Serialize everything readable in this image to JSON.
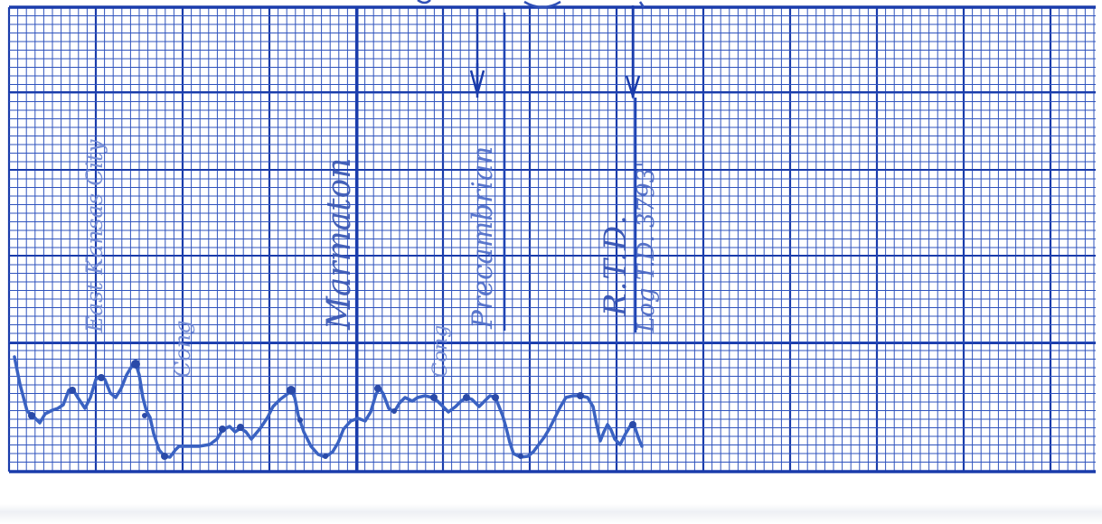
{
  "annotations": {
    "east_kansas_city": "East Kansas City",
    "conglomerate_1": "Cong",
    "marmaton": "Marmaton",
    "conglomerate_2": "Cong",
    "precambrian": "Precambrian",
    "rtd": "R.T.D.",
    "log_td": "Log T.D. 3793'"
  },
  "colors": {
    "paper": "#ffffff",
    "grid_minor": "#2f53bd",
    "grid_major": "#1a3cab",
    "trace": "#3a62c2",
    "ink_dots": "#2a4aa8"
  },
  "icons": [
    "arrow-down-icon",
    "arrow-down-icon"
  ]
}
